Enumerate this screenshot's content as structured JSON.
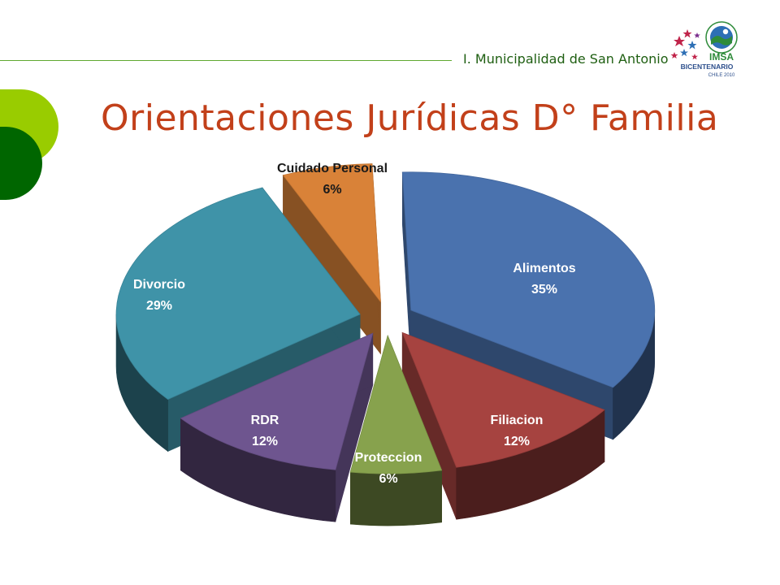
{
  "header": {
    "municipality": "I. Municipalidad de San Antonio",
    "logo_text": "IMSA",
    "logo_subtext": "BICENTENARIO",
    "logo_year": "CHILE 2010"
  },
  "slide": {
    "title": "Orientaciones Jurídicas D° Familia"
  },
  "colors": {
    "title": "#c2401a",
    "accent_light_green": "#99cc00",
    "accent_dark_green": "#006600",
    "rule": "#5fa82f"
  },
  "chart_data": {
    "type": "pie",
    "style": "3d-exploded",
    "title": "",
    "legend": "none",
    "data_labels": "category and percent",
    "slices": [
      {
        "name": "Alimentos",
        "value": 35,
        "label": "35%",
        "color": "#4a72ae",
        "label_color": "#ffffff"
      },
      {
        "name": "Filiacion",
        "value": 12,
        "label": "12%",
        "color": "#a64340",
        "label_color": "#ffffff"
      },
      {
        "name": "Proteccion",
        "value": 6,
        "label": "6%",
        "color": "#87a24d",
        "label_color": "#ffffff"
      },
      {
        "name": "RDR",
        "value": 12,
        "label": "12%",
        "color": "#6e558f",
        "label_color": "#ffffff"
      },
      {
        "name": "Divorcio",
        "value": 29,
        "label": "29%",
        "color": "#3f93a8",
        "label_color": "#ffffff"
      },
      {
        "name": "Cuidado  Personal",
        "value": 6,
        "label": "6%",
        "color": "#d98238",
        "label_color": "#1a1a1a"
      }
    ]
  }
}
